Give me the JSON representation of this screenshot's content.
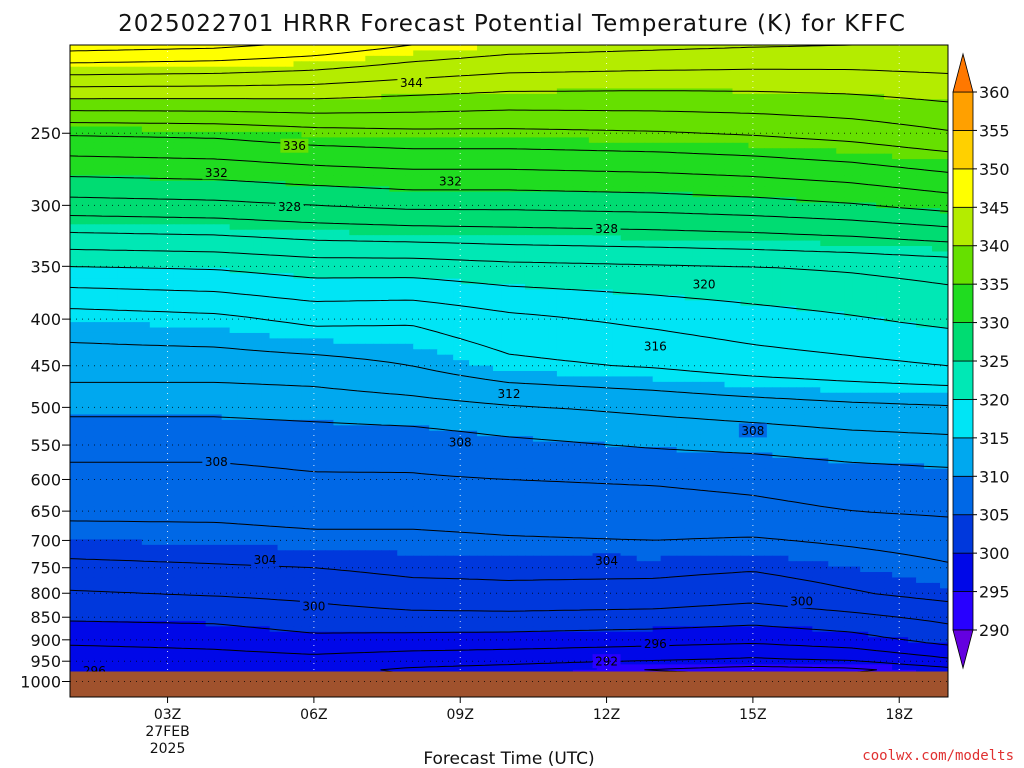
{
  "title": "2025022701 HRRR Forecast Potential Temperature (K) for KFFC",
  "credit": "coolwx.com/modelts",
  "colors": {
    "ground": "#a0522d",
    "contour": "#000000",
    "credit": "#e03030"
  },
  "chart_data": {
    "type": "heatmap",
    "title": "2025022701 HRRR Forecast Potential Temperature (K) for KFFC",
    "xlabel": "Forecast Time (UTC)",
    "ylabel": "",
    "x_unit": "forecast hour from 2025-02-27 00Z",
    "xlim": [
      1,
      19
    ],
    "y_scale": "log-pressure",
    "y_unit": "hPa",
    "ylim": [
      1040,
      200
    ],
    "grid": true,
    "y_ticks": [
      250,
      300,
      350,
      400,
      450,
      500,
      550,
      600,
      650,
      700,
      750,
      800,
      850,
      900,
      950,
      1000
    ],
    "x_ticks": [
      {
        "x": 3,
        "lines": [
          "03Z",
          "27FEB",
          "2025"
        ]
      },
      {
        "x": 6,
        "lines": [
          "06Z"
        ]
      },
      {
        "x": 9,
        "lines": [
          "09Z"
        ]
      },
      {
        "x": 12,
        "lines": [
          "12Z"
        ]
      },
      {
        "x": 15,
        "lines": [
          "15Z"
        ]
      },
      {
        "x": 18,
        "lines": [
          "18Z"
        ]
      }
    ],
    "ground_pressure": 975,
    "colorbar": {
      "levels": [
        290,
        295,
        300,
        305,
        310,
        315,
        320,
        325,
        330,
        335,
        340,
        345,
        350,
        355,
        360
      ],
      "labels": [
        "290",
        "295",
        "300",
        "305",
        "310",
        "315",
        "320",
        "325",
        "330",
        "335",
        "340",
        "345",
        "350",
        "355",
        "360"
      ],
      "colors": [
        "#6400e0",
        "#2800ff",
        "#0008e8",
        "#0038dc",
        "#0068e6",
        "#00a8ef",
        "#00e5f5",
        "#00e8b5",
        "#00dc72",
        "#20dc20",
        "#66e000",
        "#b4ec00",
        "#ffff00",
        "#ffd000",
        "#ffa000",
        "#ff7800"
      ],
      "extend": "both"
    },
    "contour_interval": 2,
    "profile_x": [
      1,
      4,
      6,
      8,
      10,
      13,
      15,
      17,
      19
    ],
    "profile_levels": [
      1000,
      975,
      950,
      900,
      850,
      800,
      750,
      700,
      650,
      600,
      550,
      500,
      450,
      400,
      350,
      300,
      250,
      200
    ],
    "theta": [
      [
        297,
        297,
        297,
        297,
        297,
        297,
        297,
        297,
        297
      ],
      [
        296,
        296.5,
        296.5,
        295.5,
        295,
        293.5,
        292.5,
        293,
        295
      ],
      [
        296.5,
        297,
        297.3,
        296.8,
        296.5,
        296,
        295.5,
        296,
        297.5
      ],
      [
        298.5,
        298.8,
        299.5,
        299.3,
        299.2,
        298.8,
        298.5,
        299.2,
        300.8
      ],
      [
        300.3,
        300.5,
        301.2,
        301.5,
        301.5,
        301.3,
        300.8,
        301.5,
        302.5
      ],
      [
        301.8,
        302.2,
        302.5,
        303.2,
        303.5,
        303.3,
        302.8,
        303.8,
        304.8
      ],
      [
        303.5,
        303.8,
        304,
        304.5,
        304.5,
        304.5,
        304.2,
        305,
        305.8
      ],
      [
        305,
        305.2,
        305.5,
        305.5,
        305.8,
        306,
        305.8,
        306.3,
        306.8
      ],
      [
        306.5,
        306.5,
        306.8,
        306.8,
        307,
        307.2,
        307.5,
        308,
        308.3
      ],
      [
        307.5,
        307.5,
        307.8,
        307.8,
        308,
        308.2,
        308.5,
        309,
        309.3
      ],
      [
        308.5,
        308.5,
        308.7,
        308.8,
        309.5,
        310.2,
        310.5,
        311,
        311.3
      ],
      [
        310.5,
        310.5,
        310.8,
        311.2,
        311.8,
        312.5,
        313,
        313.5,
        313.8
      ],
      [
        313,
        313,
        313.2,
        314,
        315.5,
        316.2,
        317,
        317.5,
        318
      ],
      [
        315,
        315.5,
        316.5,
        316.3,
        317.5,
        318.5,
        319.2,
        319.8,
        320.5
      ],
      [
        320,
        320.3,
        321,
        321,
        321.5,
        321.8,
        322,
        322.3,
        322.8
      ],
      [
        327.2,
        327.5,
        328,
        328.5,
        328.5,
        328.8,
        329.2,
        329.8,
        330.8
      ],
      [
        334.2,
        334.5,
        335.2,
        335.5,
        335.5,
        335.8,
        336.2,
        336.8,
        337.8
      ],
      [
        349,
        348.5,
        347.5,
        346,
        345,
        344.5,
        344.2,
        344,
        344
      ]
    ],
    "contour_labels": [
      {
        "x": 8.0,
        "p": 220,
        "text": "344"
      },
      {
        "x": 5.6,
        "p": 258,
        "text": "336"
      },
      {
        "x": 4.0,
        "p": 276,
        "text": "332"
      },
      {
        "x": 8.8,
        "p": 282,
        "text": "332"
      },
      {
        "x": 5.5,
        "p": 301,
        "text": "328"
      },
      {
        "x": 12.0,
        "p": 318,
        "text": "328"
      },
      {
        "x": 14.0,
        "p": 366,
        "text": "320"
      },
      {
        "x": 13.0,
        "p": 428,
        "text": "316"
      },
      {
        "x": 10.0,
        "p": 483,
        "text": "312"
      },
      {
        "x": 15.0,
        "p": 530,
        "text": "308"
      },
      {
        "x": 9.0,
        "p": 546,
        "text": "308"
      },
      {
        "x": 4.0,
        "p": 573,
        "text": "308"
      },
      {
        "x": 5.0,
        "p": 735,
        "text": "304"
      },
      {
        "x": 12.0,
        "p": 736,
        "text": "304"
      },
      {
        "x": 16.0,
        "p": 816,
        "text": "300"
      },
      {
        "x": 6.0,
        "p": 826,
        "text": "300"
      },
      {
        "x": 13.0,
        "p": 908,
        "text": "296"
      },
      {
        "x": 12.0,
        "p": 950,
        "text": "292"
      },
      {
        "x": 1.5,
        "p": 972,
        "text": "296"
      }
    ]
  }
}
